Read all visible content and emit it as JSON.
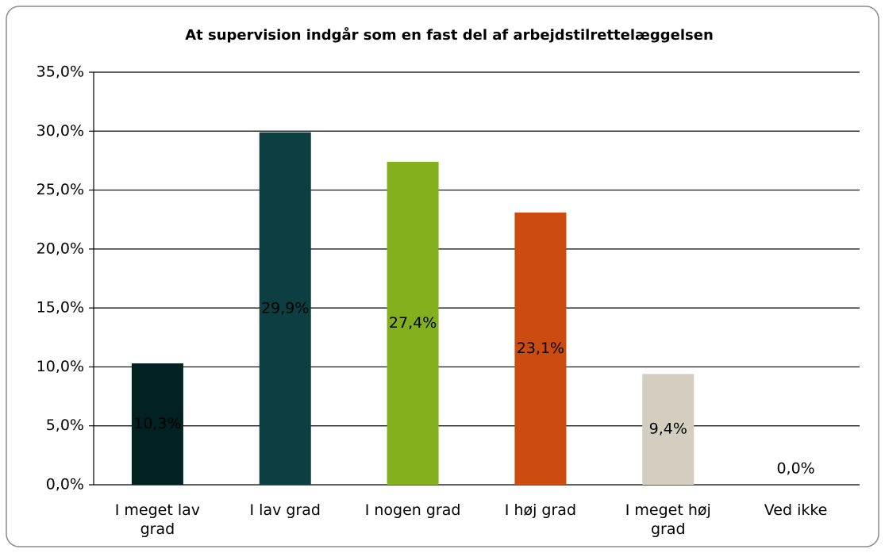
{
  "chart_data": {
    "type": "bar",
    "title": "At supervision indgår som en fast del af arbejdstilrettelæggelsen",
    "categories": [
      "I meget lav grad",
      "I lav grad",
      "I nogen grad",
      "I høj grad",
      "I meget høj grad",
      "Ved ikke"
    ],
    "values": [
      10.3,
      29.9,
      27.4,
      23.1,
      9.4,
      0.0
    ],
    "value_labels": [
      "10,3%",
      "29,9%",
      "27,4%",
      "23,1%",
      "9,4%",
      "0,0%"
    ],
    "colors": [
      "#012220",
      "#0d3f42",
      "#84b01e",
      "#cc4b10",
      "#d4cec1",
      "#7f7f7f"
    ],
    "ylim": [
      0,
      35
    ],
    "yticks": [
      {
        "value": 0,
        "label": "0,0%"
      },
      {
        "value": 5,
        "label": "5,0%"
      },
      {
        "value": 10,
        "label": "10,0%"
      },
      {
        "value": 15,
        "label": "15,0%"
      },
      {
        "value": 20,
        "label": "20,0%"
      },
      {
        "value": 25,
        "label": "25,0%"
      },
      {
        "value": 30,
        "label": "30,0%"
      },
      {
        "value": 35,
        "label": "35,0%"
      }
    ],
    "grid": true
  }
}
